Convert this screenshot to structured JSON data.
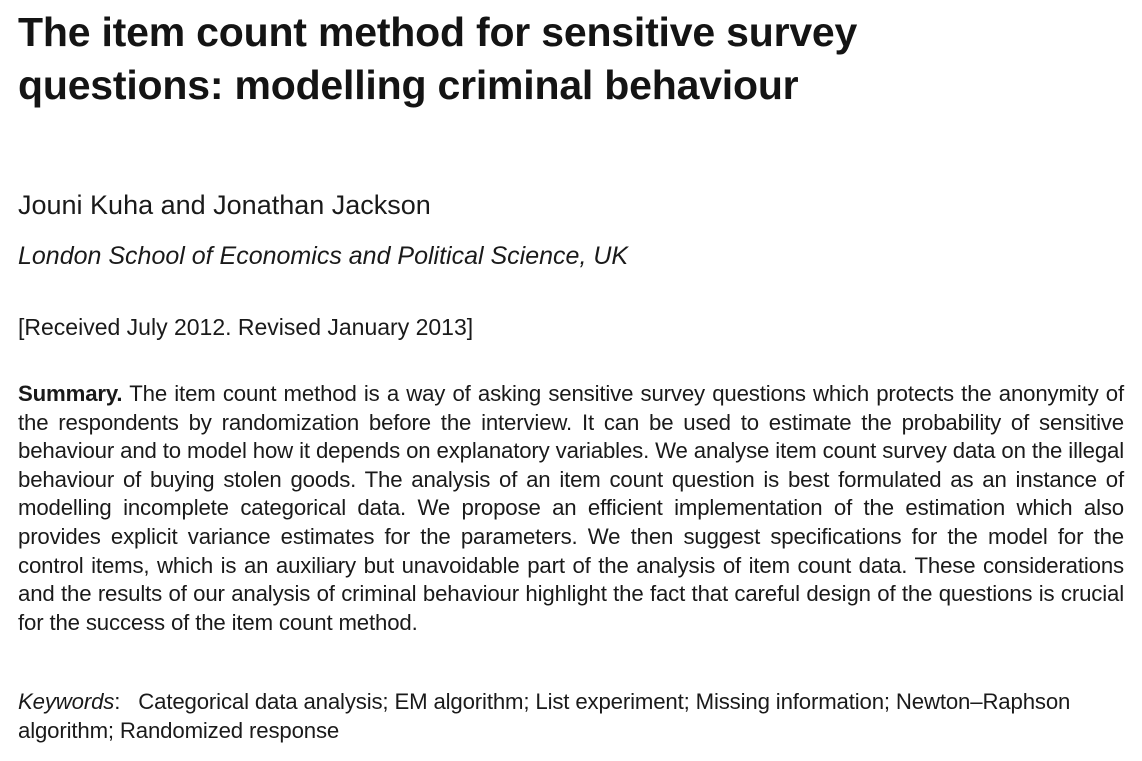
{
  "paper": {
    "title": "The item count method for sensitive survey questions: modelling criminal behaviour",
    "authors": "Jouni Kuha and Jonathan Jackson",
    "affiliation": "London School of Economics and Political Science, UK",
    "received": "[Received July 2012. Revised January 2013]",
    "summary": {
      "label": "Summary.",
      "text": "The item count method is a way of asking sensitive survey questions which protects the anonymity of the respondents by randomization before the interview. It can be used to estimate the probability of sensitive behaviour and to model how it depends on explanatory variables. We analyse item count survey data on the illegal behaviour of buying stolen goods. The analysis of an item count question is best formulated as an instance of modelling incomplete categorical data. We propose an efficient implementation of the estimation which also provides explicit variance estimates for the parameters. We then suggest specifications for the model for the control items, which is an auxiliary but unavoidable part of the analysis of item count data. These considerations and the results of our analysis of criminal behaviour highlight the fact that careful design of the questions is crucial for the success of the item count method."
    },
    "keywords": {
      "label": "Keywords",
      "text": "Categorical data analysis; EM algorithm; List experiment; Missing information; Newton–Raphson algorithm; Randomized response"
    }
  }
}
